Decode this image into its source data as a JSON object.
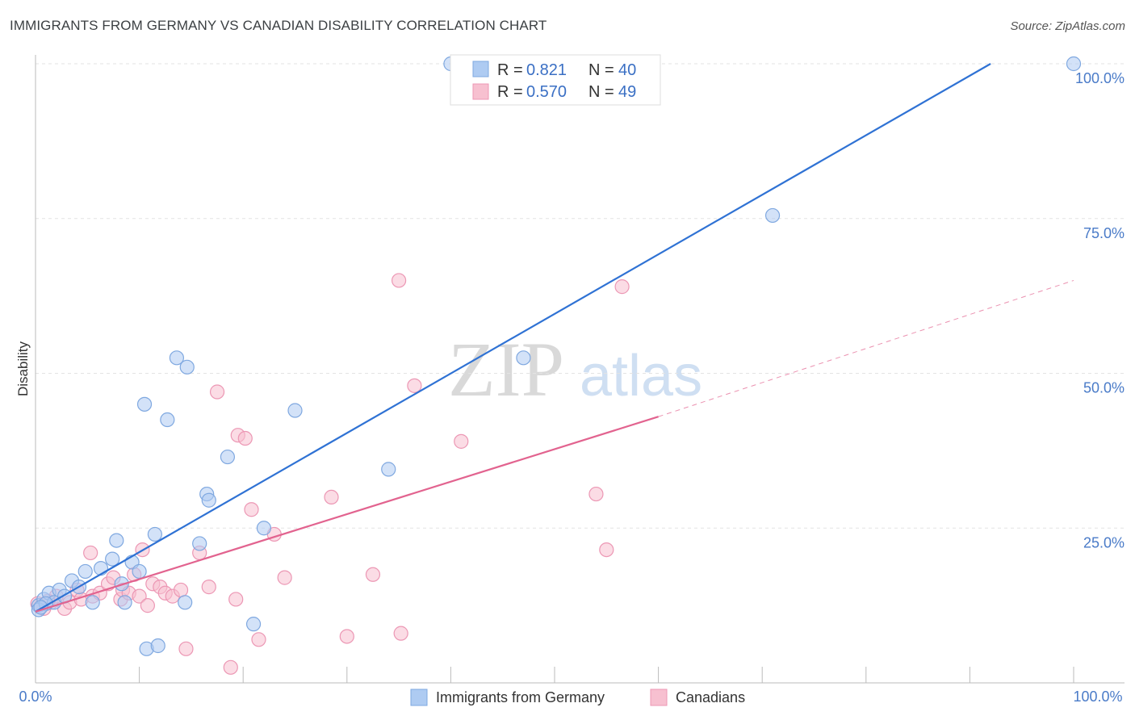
{
  "header": {
    "title": "IMMIGRANTS FROM GERMANY VS CANADIAN DISABILITY CORRELATION CHART",
    "source": "Source: ZipAtlas.com"
  },
  "watermark": {
    "zip": "ZIP",
    "atlas": "atlas"
  },
  "legend": {
    "rows": [
      {
        "r_label": "R = ",
        "r_value": "0.821",
        "n_label": "N = ",
        "n_value": "40"
      },
      {
        "r_label": "R = ",
        "r_value": "0.570",
        "n_label": "N = ",
        "n_value": "49"
      }
    ]
  },
  "bottom_legend": {
    "series_a": "Immigrants from Germany",
    "series_b": "Canadians"
  },
  "colors": {
    "blue_fill": "#aecbf2",
    "blue_stroke": "#7fa8e0",
    "blue_line": "#2f72d4",
    "pink_fill": "#f7c0d0",
    "pink_stroke": "#ec97b4",
    "pink_line": "#e2638f",
    "axis_text": "#4a7bc8"
  },
  "chart_data": {
    "type": "scatter",
    "title": "IMMIGRANTS FROM GERMANY VS CANADIAN DISABILITY CORRELATION CHART",
    "xlabel": "",
    "ylabel": "Disability",
    "xlim": [
      0,
      100
    ],
    "ylim": [
      0,
      100
    ],
    "x_tick_labels": [
      "0.0%",
      "100.0%"
    ],
    "y_tick_labels": [
      "25.0%",
      "50.0%",
      "75.0%",
      "100.0%"
    ],
    "y_ticks": [
      25,
      50,
      75,
      100
    ],
    "grid": true,
    "legend_position": "top-center",
    "series": [
      {
        "name": "Immigrants from Germany",
        "color": "#aecbf2",
        "trend": {
          "x": [
            0,
            92
          ],
          "y": [
            11.5,
            100
          ]
        },
        "points": [
          [
            0.3,
            12.5
          ],
          [
            0.8,
            13.5
          ],
          [
            1.3,
            14.5
          ],
          [
            1.8,
            13.0
          ],
          [
            2.3,
            15.0
          ],
          [
            2.8,
            14.0
          ],
          [
            3.5,
            16.5
          ],
          [
            4.2,
            15.5
          ],
          [
            4.8,
            18.0
          ],
          [
            5.5,
            13.0
          ],
          [
            6.3,
            18.5
          ],
          [
            7.4,
            20.0
          ],
          [
            7.8,
            23.0
          ],
          [
            8.3,
            16.0
          ],
          [
            8.6,
            13.0
          ],
          [
            9.3,
            19.5
          ],
          [
            10.0,
            18.0
          ],
          [
            10.5,
            45.0
          ],
          [
            10.7,
            5.5
          ],
          [
            11.5,
            24.0
          ],
          [
            11.8,
            6.0
          ],
          [
            12.7,
            42.5
          ],
          [
            13.6,
            52.5
          ],
          [
            14.4,
            13.0
          ],
          [
            14.6,
            51.0
          ],
          [
            15.8,
            22.5
          ],
          [
            16.5,
            30.5
          ],
          [
            16.7,
            29.5
          ],
          [
            18.5,
            36.5
          ],
          [
            21.0,
            9.5
          ],
          [
            22.0,
            25.0
          ],
          [
            25.0,
            44.0
          ],
          [
            34.0,
            34.5
          ],
          [
            40.0,
            100.0
          ],
          [
            47.0,
            52.5
          ],
          [
            71.0,
            75.5
          ],
          [
            100.0,
            100.0
          ],
          [
            0.3,
            11.8
          ],
          [
            1.0,
            12.8
          ],
          [
            0.5,
            12.2
          ]
        ]
      },
      {
        "name": "Canadians",
        "color": "#f7c0d0",
        "trend": {
          "x": [
            0,
            60
          ],
          "y": [
            11.5,
            43.0
          ]
        },
        "trend_dashed": {
          "x": [
            60,
            100
          ],
          "y": [
            43.0,
            65.0
          ]
        },
        "points": [
          [
            0.3,
            12.5
          ],
          [
            0.8,
            12.0
          ],
          [
            1.5,
            13.0
          ],
          [
            2.0,
            14.0
          ],
          [
            2.8,
            12.0
          ],
          [
            3.3,
            13.0
          ],
          [
            4.0,
            15.0
          ],
          [
            4.4,
            13.5
          ],
          [
            5.3,
            21.0
          ],
          [
            5.5,
            14.0
          ],
          [
            6.2,
            14.5
          ],
          [
            7.0,
            16.0
          ],
          [
            7.5,
            17.0
          ],
          [
            8.2,
            13.5
          ],
          [
            8.4,
            15.0
          ],
          [
            9.0,
            14.5
          ],
          [
            9.5,
            17.5
          ],
          [
            10.0,
            14.0
          ],
          [
            10.3,
            21.5
          ],
          [
            10.8,
            12.5
          ],
          [
            11.3,
            16.0
          ],
          [
            12.0,
            15.5
          ],
          [
            12.5,
            14.5
          ],
          [
            13.2,
            14.0
          ],
          [
            14.0,
            15.0
          ],
          [
            14.5,
            5.5
          ],
          [
            15.8,
            21.0
          ],
          [
            16.7,
            15.5
          ],
          [
            17.5,
            47.0
          ],
          [
            18.8,
            2.5
          ],
          [
            19.3,
            13.5
          ],
          [
            19.5,
            40.0
          ],
          [
            20.2,
            39.5
          ],
          [
            20.8,
            28.0
          ],
          [
            21.5,
            7.0
          ],
          [
            23.0,
            24.0
          ],
          [
            24.0,
            17.0
          ],
          [
            28.5,
            30.0
          ],
          [
            30.0,
            7.5
          ],
          [
            32.5,
            17.5
          ],
          [
            35.0,
            65.0
          ],
          [
            35.2,
            8.0
          ],
          [
            36.5,
            48.0
          ],
          [
            41.0,
            39.0
          ],
          [
            54.0,
            30.5
          ],
          [
            55.0,
            21.5
          ],
          [
            56.5,
            64.0
          ],
          [
            1.2,
            13.2
          ],
          [
            0.2,
            12.8
          ]
        ]
      }
    ]
  }
}
